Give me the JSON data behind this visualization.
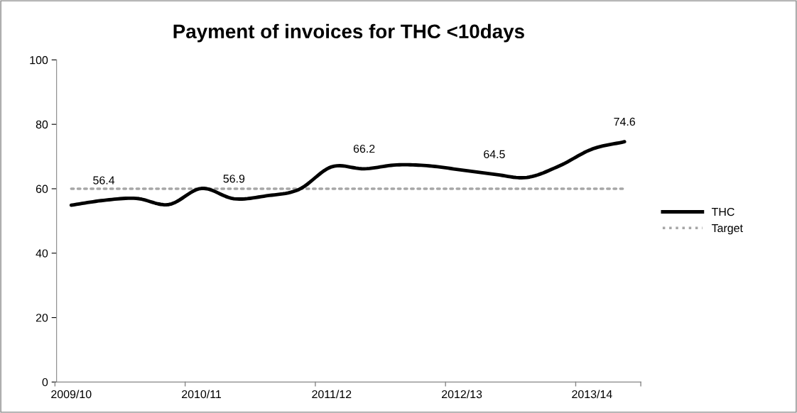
{
  "chart_data": {
    "type": "line",
    "title": "Payment of invoices for THC <10days",
    "categories": [
      "2009/10",
      null,
      null,
      null,
      "2010/11",
      null,
      null,
      null,
      "2011/12",
      null,
      null,
      null,
      "2012/13",
      null,
      null,
      null,
      "2013/14",
      null
    ],
    "series": [
      {
        "name": "THC",
        "color": "#000000",
        "line_style": "solid",
        "values": [
          54.9,
          56.4,
          57.0,
          55.1,
          60.1,
          56.9,
          57.8,
          59.8,
          66.8,
          66.2,
          67.4,
          67.1,
          65.8,
          64.5,
          63.5,
          67.1,
          72.3,
          74.6
        ],
        "value_labels": [
          null,
          "56.4",
          null,
          null,
          null,
          "56.9",
          null,
          null,
          null,
          "66.2",
          null,
          null,
          null,
          "64.5",
          null,
          null,
          null,
          "74.6"
        ]
      },
      {
        "name": "Target",
        "color": "#a6a6a6",
        "line_style": "dotted",
        "values": [
          60,
          60,
          60,
          60,
          60,
          60,
          60,
          60,
          60,
          60,
          60,
          60,
          60,
          60,
          60,
          60,
          60,
          60
        ]
      }
    ],
    "ylim": [
      0,
      100
    ],
    "yticks": [
      0,
      20,
      40,
      60,
      80,
      100
    ],
    "grid": false,
    "legend": "right",
    "marker": "none"
  }
}
